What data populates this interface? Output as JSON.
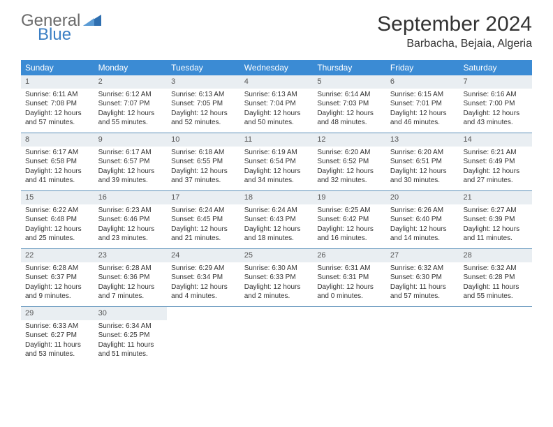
{
  "logo": {
    "word1": "General",
    "word2": "Blue"
  },
  "title": "September 2024",
  "location": "Barbacha, Bejaia, Algeria",
  "colors": {
    "header_bg": "#3b8bd4",
    "daynum_bg": "#e9eef2",
    "week_border": "#5a8fb8",
    "logo_gray": "#6b6b6b",
    "logo_blue": "#3b7fc4"
  },
  "dayNames": [
    "Sunday",
    "Monday",
    "Tuesday",
    "Wednesday",
    "Thursday",
    "Friday",
    "Saturday"
  ],
  "weeks": [
    [
      {
        "n": "1",
        "sr": "6:11 AM",
        "ss": "7:08 PM",
        "dl": "12 hours and 57 minutes."
      },
      {
        "n": "2",
        "sr": "6:12 AM",
        "ss": "7:07 PM",
        "dl": "12 hours and 55 minutes."
      },
      {
        "n": "3",
        "sr": "6:13 AM",
        "ss": "7:05 PM",
        "dl": "12 hours and 52 minutes."
      },
      {
        "n": "4",
        "sr": "6:13 AM",
        "ss": "7:04 PM",
        "dl": "12 hours and 50 minutes."
      },
      {
        "n": "5",
        "sr": "6:14 AM",
        "ss": "7:03 PM",
        "dl": "12 hours and 48 minutes."
      },
      {
        "n": "6",
        "sr": "6:15 AM",
        "ss": "7:01 PM",
        "dl": "12 hours and 46 minutes."
      },
      {
        "n": "7",
        "sr": "6:16 AM",
        "ss": "7:00 PM",
        "dl": "12 hours and 43 minutes."
      }
    ],
    [
      {
        "n": "8",
        "sr": "6:17 AM",
        "ss": "6:58 PM",
        "dl": "12 hours and 41 minutes."
      },
      {
        "n": "9",
        "sr": "6:17 AM",
        "ss": "6:57 PM",
        "dl": "12 hours and 39 minutes."
      },
      {
        "n": "10",
        "sr": "6:18 AM",
        "ss": "6:55 PM",
        "dl": "12 hours and 37 minutes."
      },
      {
        "n": "11",
        "sr": "6:19 AM",
        "ss": "6:54 PM",
        "dl": "12 hours and 34 minutes."
      },
      {
        "n": "12",
        "sr": "6:20 AM",
        "ss": "6:52 PM",
        "dl": "12 hours and 32 minutes."
      },
      {
        "n": "13",
        "sr": "6:20 AM",
        "ss": "6:51 PM",
        "dl": "12 hours and 30 minutes."
      },
      {
        "n": "14",
        "sr": "6:21 AM",
        "ss": "6:49 PM",
        "dl": "12 hours and 27 minutes."
      }
    ],
    [
      {
        "n": "15",
        "sr": "6:22 AM",
        "ss": "6:48 PM",
        "dl": "12 hours and 25 minutes."
      },
      {
        "n": "16",
        "sr": "6:23 AM",
        "ss": "6:46 PM",
        "dl": "12 hours and 23 minutes."
      },
      {
        "n": "17",
        "sr": "6:24 AM",
        "ss": "6:45 PM",
        "dl": "12 hours and 21 minutes."
      },
      {
        "n": "18",
        "sr": "6:24 AM",
        "ss": "6:43 PM",
        "dl": "12 hours and 18 minutes."
      },
      {
        "n": "19",
        "sr": "6:25 AM",
        "ss": "6:42 PM",
        "dl": "12 hours and 16 minutes."
      },
      {
        "n": "20",
        "sr": "6:26 AM",
        "ss": "6:40 PM",
        "dl": "12 hours and 14 minutes."
      },
      {
        "n": "21",
        "sr": "6:27 AM",
        "ss": "6:39 PM",
        "dl": "12 hours and 11 minutes."
      }
    ],
    [
      {
        "n": "22",
        "sr": "6:28 AM",
        "ss": "6:37 PM",
        "dl": "12 hours and 9 minutes."
      },
      {
        "n": "23",
        "sr": "6:28 AM",
        "ss": "6:36 PM",
        "dl": "12 hours and 7 minutes."
      },
      {
        "n": "24",
        "sr": "6:29 AM",
        "ss": "6:34 PM",
        "dl": "12 hours and 4 minutes."
      },
      {
        "n": "25",
        "sr": "6:30 AM",
        "ss": "6:33 PM",
        "dl": "12 hours and 2 minutes."
      },
      {
        "n": "26",
        "sr": "6:31 AM",
        "ss": "6:31 PM",
        "dl": "12 hours and 0 minutes."
      },
      {
        "n": "27",
        "sr": "6:32 AM",
        "ss": "6:30 PM",
        "dl": "11 hours and 57 minutes."
      },
      {
        "n": "28",
        "sr": "6:32 AM",
        "ss": "6:28 PM",
        "dl": "11 hours and 55 minutes."
      }
    ],
    [
      {
        "n": "29",
        "sr": "6:33 AM",
        "ss": "6:27 PM",
        "dl": "11 hours and 53 minutes."
      },
      {
        "n": "30",
        "sr": "6:34 AM",
        "ss": "6:25 PM",
        "dl": "11 hours and 51 minutes."
      },
      null,
      null,
      null,
      null,
      null
    ]
  ],
  "labels": {
    "sunrise": "Sunrise:",
    "sunset": "Sunset:",
    "daylight": "Daylight:"
  }
}
